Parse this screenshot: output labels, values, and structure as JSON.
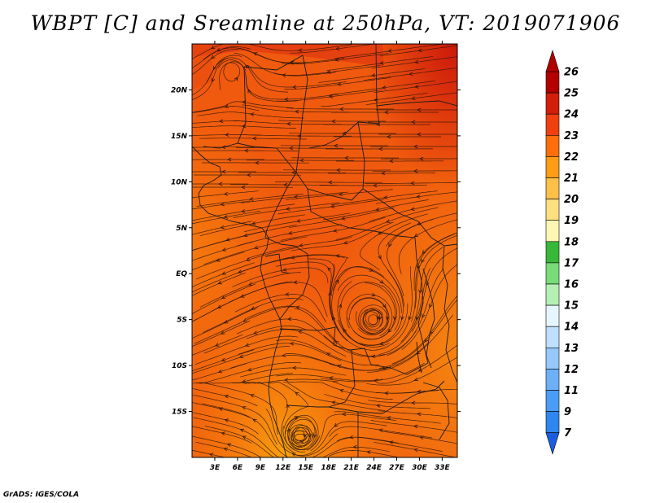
{
  "title": "WBPT [C] and Sreamline at 250hPa, VT: 2019071906",
  "footer": "GrADS: IGES/COLA",
  "map": {
    "lon_labels": [
      "3E",
      "6E",
      "9E",
      "12E",
      "15E",
      "18E",
      "21E",
      "24E",
      "27E",
      "30E",
      "33E"
    ],
    "lon_values": [
      3,
      6,
      9,
      12,
      15,
      18,
      21,
      24,
      27,
      30,
      33
    ],
    "lon_range": [
      0,
      35
    ],
    "lat_labels": [
      "20N",
      "15N",
      "10N",
      "5N",
      "EQ",
      "5S",
      "10S",
      "15S"
    ],
    "lat_values": [
      20,
      15,
      10,
      5,
      0,
      -5,
      -10,
      -15
    ],
    "lat_range": [
      -20,
      25
    ],
    "vortex_center": {
      "lon": 23.9,
      "lat": -5
    },
    "small_vortex_center": {
      "lon": 14.3,
      "lat": -17.8
    }
  },
  "colorbar": {
    "labels": [
      "7",
      "9",
      "11",
      "12",
      "13",
      "14",
      "15",
      "16",
      "17",
      "18",
      "19",
      "20",
      "21",
      "22",
      "23",
      "24",
      "25",
      "26"
    ],
    "colors": [
      "#1e6ee6",
      "#2e86ee",
      "#4a9cf4",
      "#6eb0f8",
      "#96c8fa",
      "#bee0fc",
      "#e6f6ff",
      "#b4f0b4",
      "#78dc78",
      "#38b838",
      "#fff6b4",
      "#ffe080",
      "#ffc048",
      "#ff9c16",
      "#ff6e0a",
      "#f04010",
      "#d21e0a",
      "#b40000"
    ],
    "arrow_low": "#1a5ee0",
    "arrow_high": "#b00000"
  }
}
